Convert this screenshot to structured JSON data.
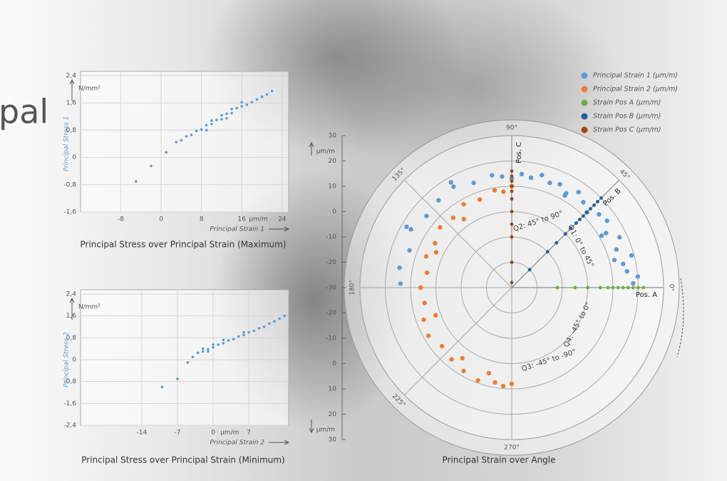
{
  "heading": "pal",
  "chart_data": [
    {
      "type": "scatter",
      "title": "Principal Stress over Principal Strain (Maximum)",
      "xlabel": "Principal Strain 1",
      "ylabel": "Principal Stress 1",
      "x_unit": "µm/m",
      "y_unit": "N/mm²",
      "xlim": [
        -16,
        25.3
      ],
      "ylim": [
        -1.6,
        2.4
      ],
      "xticks": [
        -8,
        0,
        8,
        16,
        24
      ],
      "yticks": [
        {
          "value": 2.4,
          "label": "2,4"
        },
        {
          "value": 1.6,
          "label": "1,6"
        },
        {
          "value": 0.8,
          "label": "0,8"
        },
        0,
        {
          "value": -0.8,
          "label": "-0,8"
        },
        {
          "value": -1.6,
          "label": "-1,6"
        }
      ],
      "grid": true,
      "color": "#5b9bd5",
      "x": [
        -5,
        -2,
        1,
        3,
        4,
        5,
        6,
        7,
        8,
        9,
        10,
        10,
        11,
        12,
        12,
        13,
        14,
        14,
        15,
        16,
        17,
        18,
        19,
        20,
        21,
        22,
        9,
        13,
        16
      ],
      "values": [
        -0.7,
        -0.25,
        0.15,
        0.45,
        0.5,
        0.62,
        0.66,
        0.78,
        0.82,
        0.95,
        0.98,
        1.08,
        1.1,
        1.12,
        1.24,
        1.28,
        1.3,
        1.42,
        1.45,
        1.5,
        1.55,
        1.62,
        1.7,
        1.78,
        1.85,
        1.95,
        0.8,
        1.15,
        1.62
      ]
    },
    {
      "type": "scatter",
      "title": "Principal Stress over Principal Strain (Minimum)",
      "xlabel": "Principal Strain 2",
      "ylabel": "Principal Stress 2",
      "x_unit": "µm/m",
      "y_unit": "N/mm²",
      "xlim": [
        -26,
        14.8
      ],
      "ylim": [
        -2.4,
        2.4
      ],
      "xticks": [
        -14,
        -7,
        0,
        7
      ],
      "yticks": [
        {
          "value": 2.4,
          "label": "2,4"
        },
        {
          "value": 1.6,
          "label": "1,6"
        },
        {
          "value": 0.8,
          "label": "0,8"
        },
        0,
        {
          "value": -0.8,
          "label": "-0,8"
        },
        {
          "value": -1.6,
          "label": "-1,6"
        },
        {
          "value": -2.4,
          "label": "-2,4"
        }
      ],
      "grid": true,
      "color": "#5b9bd5",
      "x": [
        -10,
        -7,
        -5,
        -4,
        -3,
        -2,
        -2,
        -1,
        0,
        0,
        1,
        2,
        3,
        4,
        5,
        6,
        7,
        8,
        9,
        10,
        11,
        12,
        13,
        14,
        2,
        6,
        -1
      ],
      "values": [
        -1.0,
        -0.7,
        -0.1,
        0.1,
        0.25,
        0.3,
        0.4,
        0.38,
        0.45,
        0.55,
        0.55,
        0.6,
        0.7,
        0.75,
        0.85,
        0.9,
        1.0,
        1.05,
        1.15,
        1.2,
        1.32,
        1.4,
        1.5,
        1.6,
        0.72,
        1.0,
        0.3
      ]
    },
    {
      "type": "polar",
      "title": "Principal Strain over Angle",
      "r_unit": "µm/m",
      "rlim": [
        -30,
        30
      ],
      "rticks": [
        30,
        20,
        10,
        0,
        -10,
        -20,
        -30
      ],
      "angle_ticks": [
        {
          "value": 0,
          "label": "0°"
        },
        {
          "value": 45,
          "label": "45°"
        },
        {
          "value": 90,
          "label": "90°"
        },
        {
          "value": 135,
          "label": "135°"
        },
        {
          "value": 180,
          "label": "180°"
        },
        {
          "value": 225,
          "label": "225°"
        },
        {
          "value": 270,
          "label": "270°"
        }
      ],
      "direction_labels": [
        "Pos. A",
        "Pos. B",
        "Pos. C"
      ],
      "annotations": [
        "Q1: 0° to 45°",
        "Q2: 45° to 90°",
        "Q3: -45° to -90°",
        "Q4: -45° to 0°"
      ],
      "legend": "top-right",
      "series": [
        {
          "name": "Principal Strain 1 (µm/m)",
          "color": "#5b9bd5",
          "theta": [
            2,
            5,
            8,
            12,
            15,
            20,
            25,
            30,
            35,
            40,
            50,
            55,
            60,
            65,
            70,
            75,
            80,
            85,
            90,
            95,
            100,
            110,
            120,
            130,
            140,
            150,
            160,
            170,
            178,
            15,
            30,
            45,
            60,
            120,
            150
          ],
          "values": [
            18,
            20,
            16,
            15,
            19,
            14,
            17,
            13,
            16,
            15,
            14,
            16,
            13,
            15,
            14,
            16,
            14,
            15,
            13,
            14,
            15,
            14,
            16,
            15,
            14,
            16,
            13,
            15,
            14,
            12,
            11,
            12,
            12,
            18,
            18
          ]
        },
        {
          "name": "Principal Strain 2 (µm/m)",
          "color": "#ed7d31",
          "theta": [
            90,
            95,
            100,
            110,
            120,
            130,
            140,
            150,
            160,
            170,
            180,
            190,
            200,
            210,
            220,
            230,
            240,
            250,
            260,
            265,
            270,
            125,
            155,
            200,
            235,
            255
          ],
          "values": [
            10,
            8,
            9,
            7,
            8,
            6,
            7,
            5,
            6,
            4,
            6,
            5,
            7,
            8,
            6,
            7,
            8,
            9,
            8,
            9,
            8,
            3,
            3,
            2,
            4,
            5
          ]
        },
        {
          "name": "Strain Pos A (µm/m)",
          "color": "#70ad47",
          "theta": [
            0,
            0,
            0,
            0,
            0,
            0,
            0,
            0,
            0,
            0,
            0,
            0
          ],
          "values": [
            -12,
            -5,
            0,
            5,
            8,
            10,
            12,
            14,
            16,
            18,
            20,
            22
          ]
        },
        {
          "name": "Strain Pos B (µm/m)",
          "color": "#255e91",
          "theta": [
            45,
            45,
            45,
            45,
            45,
            45,
            45,
            45,
            45,
            45,
            45,
            45,
            45
          ],
          "values": [
            -20,
            -10,
            -5,
            0,
            3,
            6,
            8,
            10,
            12,
            14,
            16,
            18,
            20
          ]
        },
        {
          "name": "Strain Pos C (µm/m)",
          "color": "#9e480e",
          "theta": [
            90,
            90,
            90,
            90,
            90,
            90,
            90,
            90,
            90,
            90,
            90
          ],
          "values": [
            -28,
            -20,
            -10,
            -5,
            0,
            5,
            8,
            10,
            12,
            14,
            16
          ]
        }
      ]
    }
  ]
}
